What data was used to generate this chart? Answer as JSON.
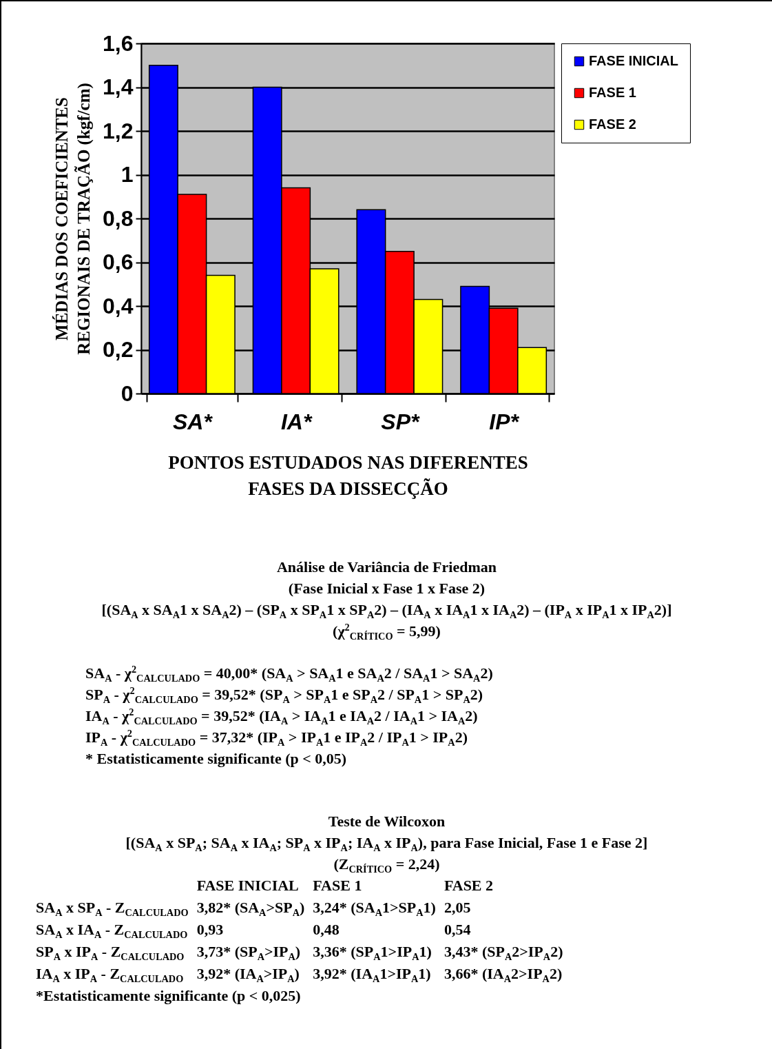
{
  "chart_data": {
    "type": "bar",
    "xlabel": "PONTOS ESTUDADOS NAS DIFERENTES\nFASES DA DISSECÇÃO",
    "ylabel": "MÉDIAS DOS COEFICIENTES\nREGIONAIS DE TRAÇÃO (kgf/cm)",
    "categories": [
      "SA*",
      "IA*",
      "SP*",
      "IP*"
    ],
    "series": [
      {
        "name": "FASE INICIAL",
        "color": "#0000ff",
        "values": [
          1.5,
          1.4,
          0.84,
          0.49
        ]
      },
      {
        "name": "FASE 1",
        "color": "#ff0000",
        "values": [
          0.91,
          0.94,
          0.65,
          0.39
        ]
      },
      {
        "name": "FASE 2",
        "color": "#ffff00",
        "values": [
          0.54,
          0.57,
          0.43,
          0.21
        ]
      }
    ],
    "ylim": [
      0,
      1.6
    ],
    "yticks": [
      0,
      {
        "value": 0.2,
        "label": "0,2"
      },
      {
        "value": 0.4,
        "label": "0,4"
      },
      {
        "value": 0.6,
        "label": "0,6"
      },
      {
        "value": 0.8,
        "label": "0,8"
      },
      1,
      {
        "value": 1.2,
        "label": "1,2"
      },
      {
        "value": 1.4,
        "label": "1,4"
      },
      {
        "value": 1.6,
        "label": "1,6"
      }
    ],
    "grid": "y",
    "legend": "right",
    "annotations": [
      "Análise de Variância de Friedman",
      "(Fase Inicial x Fase 1 x Fase 2)",
      "[(SA$_{A}$ x SA$_{A}$1 x SA$_{A}$2) – (SP$_{A}$ x SP$_{A}$1 x SP$_{A}$2) – (IA$_{A}$ x IA$_{A}$1 x IA$_{A}$2) – (IP$_{A}$ x IP$_{A}$1 x IP$_{A}$2)]",
      "(χ$^{2}$$_{CRÍTICO}$ = 5,99)",
      "SA$_{A}$ - χ$^{2}$$_{CALCULADO}$ = 40,00* (SA$_{A}$ > SA$_{A}$1 e SA$_{A}$2 / SA$_{A}$1 > SA$_{A}$2)",
      "SP$_{A}$ - χ$^{2}$$_{CALCULADO}$ = 39,52* (SP$_{A}$ > SP$_{A}$1 e SP$_{A}$2 / SP$_{A}$1 > SP$_{A}$2)",
      "IA$_{A}$ - χ$^{2}$$_{CALCULADO}$ = 39,52* (IA$_{A}$ > IA$_{A}$1 e IA$_{A}$2 / IA$_{A}$1 > IA$_{A}$2)",
      "IP$_{A}$ - χ$^{2}$$_{CALCULADO}$ = 37,32* (IP$_{A}$ > IP$_{A}$1 e IP$_{A}$2 / IP$_{A}$1 > IP$_{A}$2)",
      "* Estatisticamente significante (p < 0,05)",
      "Teste de Wilcoxon",
      "[(SA$_{A}$ x SP$_{A}$; SA$_{A}$ x IA$_{A}$; SP$_{A}$ x IP$_{A}$; IA$_{A}$ x IP$_{A}$), para Fase Inicial, Fase 1 e Fase 2]",
      "(Z$_{CRÍTICO}$ = 2,24)",
      "FASE INICIAL",
      "FASE 1",
      "FASE 2",
      "SA$_{A}$ x SP$_{A}$ - Z$_{CALCULADO}$",
      "3,82* (SA$_{A}$>SP$_{A}$)",
      "3,24* (SA$_{A}$1>SP$_{A}$1)",
      "2,05",
      "SA$_{A}$ x IA$_{A}$ - Z$_{CALCULADO}$",
      "0,93",
      "0,48",
      "0,54",
      "SP$_{A}$ x IP$_{A}$ - Z$_{CALCULADO}$",
      "3,73* (SP$_{A}$>IP$_{A}$)",
      "3,36* (SP$_{A}$1>IP$_{A}$1)",
      "3,43* (SP$_{A}$2>IP$_{A}$2)",
      "IA$_{A}$ x IP$_{A}$ - Z$_{CALCULADO}$",
      "3,92* (IA$_{A}$>IP$_{A}$)",
      "3,92* (IA$_{A}$1>IP$_{A}$1)",
      "3,66* (IA$_{A}$2>IP$_{A}$2)",
      "*Estatisticamente significante (p < 0,025)"
    ]
  }
}
